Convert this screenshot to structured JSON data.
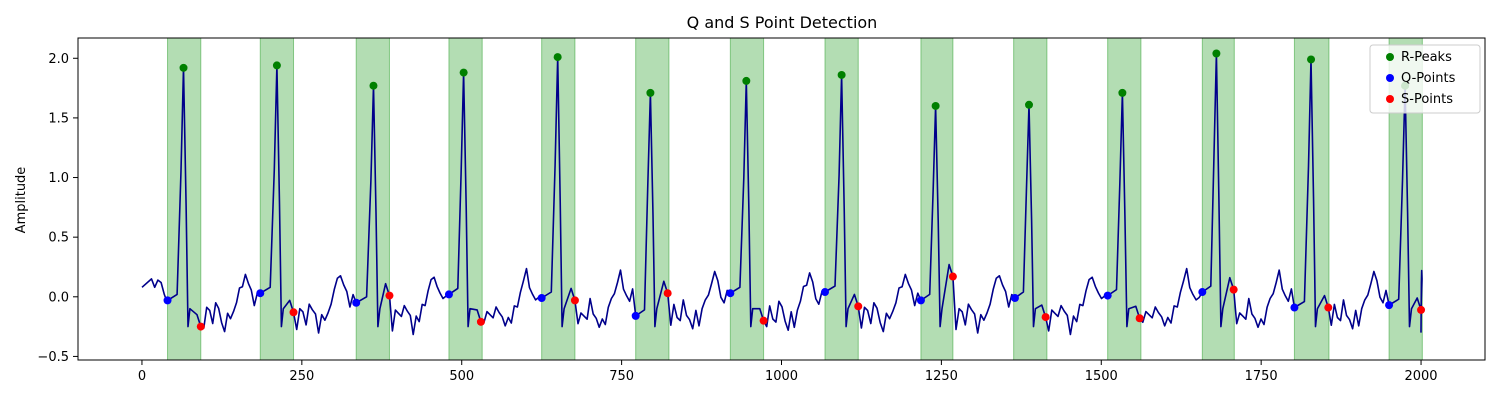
{
  "chart_data": {
    "type": "line",
    "title": "Q and S Point Detection",
    "xlabel": "",
    "ylabel": "Amplitude",
    "xlim": [
      -100,
      2100
    ],
    "ylim": [
      -0.53,
      2.17
    ],
    "x_ticks": [
      0,
      250,
      500,
      750,
      1000,
      1250,
      1500,
      1750,
      2000
    ],
    "y_ticks": [
      -0.5,
      0.0,
      0.5,
      1.0,
      1.5,
      2.0
    ],
    "x_tick_labels": [
      "0",
      "250",
      "500",
      "750",
      "1000",
      "1250",
      "1500",
      "1750",
      "2000"
    ],
    "y_tick_labels": [
      "−0.5",
      "0.0",
      "0.5",
      "1.0",
      "1.5",
      "2.0"
    ],
    "legend_position": "top-right",
    "colors": {
      "signal": "#00008b",
      "r_peaks": "#008000",
      "q_points": "#0000ff",
      "s_points": "#ff0000",
      "span": "#2ca02c"
    },
    "legend": [
      "R-Peaks",
      "Q-Points",
      "S-Points"
    ],
    "r_peaks": [
      {
        "x": 65,
        "y": 1.92
      },
      {
        "x": 211,
        "y": 1.94
      },
      {
        "x": 362,
        "y": 1.77
      },
      {
        "x": 503,
        "y": 1.88
      },
      {
        "x": 650,
        "y": 2.01
      },
      {
        "x": 795,
        "y": 1.71
      },
      {
        "x": 945,
        "y": 1.81
      },
      {
        "x": 1094,
        "y": 1.86
      },
      {
        "x": 1241,
        "y": 1.6
      },
      {
        "x": 1387,
        "y": 1.61
      },
      {
        "x": 1533,
        "y": 1.71
      },
      {
        "x": 1680,
        "y": 2.04
      },
      {
        "x": 1828,
        "y": 1.99
      },
      {
        "x": 1975,
        "y": 1.77
      }
    ],
    "q_points": [
      {
        "x": 40,
        "y": -0.03
      },
      {
        "x": 185,
        "y": 0.03
      },
      {
        "x": 335,
        "y": -0.05
      },
      {
        "x": 480,
        "y": 0.02
      },
      {
        "x": 625,
        "y": -0.01
      },
      {
        "x": 772,
        "y": -0.16
      },
      {
        "x": 920,
        "y": 0.03
      },
      {
        "x": 1068,
        "y": 0.04
      },
      {
        "x": 1218,
        "y": -0.03
      },
      {
        "x": 1365,
        "y": -0.01
      },
      {
        "x": 1510,
        "y": 0.01
      },
      {
        "x": 1658,
        "y": 0.04
      },
      {
        "x": 1802,
        "y": -0.09
      },
      {
        "x": 1950,
        "y": -0.07
      }
    ],
    "s_points": [
      {
        "x": 92,
        "y": -0.25
      },
      {
        "x": 237,
        "y": -0.13
      },
      {
        "x": 387,
        "y": 0.01
      },
      {
        "x": 530,
        "y": -0.21
      },
      {
        "x": 677,
        "y": -0.03
      },
      {
        "x": 822,
        "y": 0.03
      },
      {
        "x": 972,
        "y": -0.2
      },
      {
        "x": 1120,
        "y": -0.08
      },
      {
        "x": 1268,
        "y": 0.17
      },
      {
        "x": 1413,
        "y": -0.17
      },
      {
        "x": 1560,
        "y": -0.18
      },
      {
        "x": 1707,
        "y": 0.06
      },
      {
        "x": 1855,
        "y": -0.09
      },
      {
        "x": 2000,
        "y": -0.11
      }
    ],
    "spans": [
      [
        40,
        92
      ],
      [
        185,
        237
      ],
      [
        335,
        387
      ],
      [
        480,
        532
      ],
      [
        625,
        677
      ],
      [
        772,
        824
      ],
      [
        920,
        972
      ],
      [
        1068,
        1120
      ],
      [
        1218,
        1268
      ],
      [
        1363,
        1415
      ],
      [
        1510,
        1562
      ],
      [
        1658,
        1708
      ],
      [
        1802,
        1856
      ],
      [
        1950,
        2002
      ]
    ],
    "signal_pre_offsets": [
      -25,
      -20,
      -15,
      -10,
      -5,
      -3,
      0
    ],
    "signal_pre_values": [
      0.15,
      0.08,
      0.14,
      0.12,
      0.02,
      -0.01,
      -0.03
    ],
    "signal_between_values": [
      -0.25,
      -0.1,
      -0.15,
      -0.2,
      -0.05,
      -0.12,
      -0.18,
      -0.28,
      -0.15,
      -0.22,
      -0.1,
      -0.05,
      0.05,
      0.12,
      0.2,
      0.1,
      0.02,
      -0.05,
      0.03
    ],
    "signal_wave_values": [
      0.15,
      0.22,
      0.12,
      -0.3
    ],
    "signal_x_end": 2000
  }
}
